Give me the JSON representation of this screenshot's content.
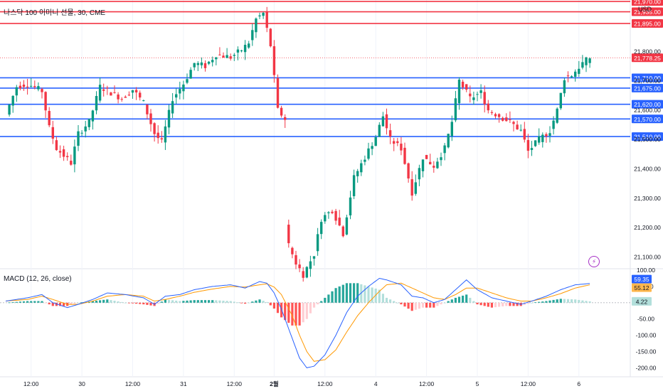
{
  "header": {
    "title": "나스닥 100 이미니 선물, 30, CME",
    "currency": "USD",
    "macd_title": "MACD (12, 26, close)",
    "alert_icon": "lightning-icon"
  },
  "chart_data": {
    "type": "candlestick",
    "title": "나스닥 100 이미니 선물, 30, CME",
    "price_axis": {
      "range": [
        21060,
        21975
      ],
      "tick_labels": [
        "21,800.00",
        "21,700.00",
        "21,600.00",
        "21,500.00",
        "21,400.00",
        "21,300.00",
        "21,200.00",
        "21,100.00"
      ],
      "tick_values": [
        21800,
        21700,
        21600,
        21500,
        21400,
        21300,
        21200,
        21100
      ]
    },
    "time_axis": {
      "labels": [
        "12:00",
        "30",
        "12:00",
        "31",
        "12:00",
        "2월",
        "12:00",
        "4",
        "12:00",
        "5",
        "12:00",
        "6"
      ],
      "bold": [
        false,
        false,
        false,
        false,
        false,
        true,
        false,
        false,
        false,
        false,
        false,
        false
      ],
      "label_bar_index": [
        7,
        21,
        35,
        49,
        63,
        74,
        88,
        102,
        116,
        130,
        144,
        158
      ]
    },
    "resistance_levels": [
      {
        "value": 21970,
        "label": "21,970.00"
      },
      {
        "value": 21935,
        "label": "21,935.00"
      },
      {
        "value": 21895,
        "label": "21,895.00"
      }
    ],
    "support_levels": [
      {
        "value": 21710,
        "label": "21,710.00"
      },
      {
        "value": 21675,
        "label": "21,675.00"
      },
      {
        "value": 21620,
        "label": "21,620.00"
      },
      {
        "value": 21570,
        "label": "21,570.00"
      },
      {
        "value": 21510,
        "label": "21,510.00"
      }
    ],
    "last_price": {
      "value": 21778.25,
      "label": "21,778.25"
    },
    "price_path": [
      [
        0,
        21585
      ],
      [
        3,
        21680
      ],
      [
        6,
        21690
      ],
      [
        10,
        21665
      ],
      [
        12,
        21540
      ],
      [
        14,
        21470
      ],
      [
        18,
        21420
      ],
      [
        20,
        21520
      ],
      [
        23,
        21560
      ],
      [
        26,
        21680
      ],
      [
        29,
        21660
      ],
      [
        32,
        21640
      ],
      [
        35,
        21670
      ],
      [
        38,
        21625
      ],
      [
        41,
        21520
      ],
      [
        43,
        21490
      ],
      [
        46,
        21640
      ],
      [
        49,
        21690
      ],
      [
        52,
        21760
      ],
      [
        55,
        21750
      ],
      [
        58,
        21790
      ],
      [
        62,
        21780
      ],
      [
        65,
        21805
      ],
      [
        67,
        21830
      ],
      [
        69,
        21910
      ],
      [
        71,
        21930
      ],
      [
        73,
        21820
      ],
      [
        75,
        21600
      ],
      [
        77,
        21570
      ],
      [
        78,
        21140
      ],
      [
        80,
        21080
      ],
      [
        82,
        21040
      ],
      [
        85,
        21110
      ],
      [
        87,
        21230
      ],
      [
        90,
        21260
      ],
      [
        93,
        21180
      ],
      [
        96,
        21370
      ],
      [
        99,
        21440
      ],
      [
        102,
        21510
      ],
      [
        104,
        21580
      ],
      [
        106,
        21500
      ],
      [
        109,
        21470
      ],
      [
        112,
        21320
      ],
      [
        115,
        21440
      ],
      [
        118,
        21410
      ],
      [
        121,
        21470
      ],
      [
        123,
        21560
      ],
      [
        125,
        21700
      ],
      [
        128,
        21640
      ],
      [
        131,
        21660
      ],
      [
        133,
        21600
      ],
      [
        136,
        21580
      ],
      [
        139,
        21560
      ],
      [
        142,
        21530
      ],
      [
        144,
        21460
      ],
      [
        147,
        21500
      ],
      [
        150,
        21530
      ],
      [
        152,
        21600
      ],
      [
        154,
        21710
      ],
      [
        156,
        21720
      ],
      [
        159,
        21760
      ],
      [
        161,
        21778
      ]
    ],
    "macd": {
      "axis_range": [
        -210,
        100
      ],
      "tick_labels": [
        "100.00",
        "50.00",
        "-50.00",
        "-100.00",
        "-150.00",
        "-200.00"
      ],
      "tick_values": [
        100,
        50,
        -50,
        -100,
        -150,
        -200
      ],
      "zero_label": "0.00",
      "macd_value": {
        "value": 59.35,
        "label": "59.35"
      },
      "signal_value": {
        "value": 55.12,
        "label": "55.12"
      },
      "histogram_value": {
        "value": 4.22,
        "label": "4.22"
      },
      "macd_line": [
        [
          0,
          5
        ],
        [
          6,
          15
        ],
        [
          10,
          25
        ],
        [
          13,
          0
        ],
        [
          17,
          -15
        ],
        [
          20,
          -5
        ],
        [
          24,
          10
        ],
        [
          28,
          30
        ],
        [
          33,
          25
        ],
        [
          38,
          15
        ],
        [
          41,
          -5
        ],
        [
          44,
          20
        ],
        [
          48,
          25
        ],
        [
          52,
          40
        ],
        [
          57,
          50
        ],
        [
          62,
          55
        ],
        [
          66,
          45
        ],
        [
          70,
          65
        ],
        [
          72,
          60
        ],
        [
          74,
          30
        ],
        [
          76,
          -20
        ],
        [
          79,
          -110
        ],
        [
          81,
          -170
        ],
        [
          83,
          -200
        ],
        [
          85,
          -195
        ],
        [
          88,
          -160
        ],
        [
          91,
          -100
        ],
        [
          94,
          -30
        ],
        [
          97,
          20
        ],
        [
          100,
          50
        ],
        [
          103,
          75
        ],
        [
          105,
          70
        ],
        [
          109,
          55
        ],
        [
          112,
          20
        ],
        [
          115,
          15
        ],
        [
          118,
          0
        ],
        [
          121,
          10
        ],
        [
          124,
          40
        ],
        [
          127,
          70
        ],
        [
          130,
          40
        ],
        [
          134,
          15
        ],
        [
          138,
          5
        ],
        [
          142,
          -5
        ],
        [
          145,
          5
        ],
        [
          149,
          20
        ],
        [
          153,
          40
        ],
        [
          157,
          55
        ],
        [
          161,
          59
        ]
      ],
      "signal_line": [
        [
          0,
          5
        ],
        [
          6,
          10
        ],
        [
          10,
          20
        ],
        [
          13,
          10
        ],
        [
          17,
          -5
        ],
        [
          20,
          -5
        ],
        [
          24,
          5
        ],
        [
          28,
          20
        ],
        [
          33,
          25
        ],
        [
          38,
          20
        ],
        [
          41,
          5
        ],
        [
          44,
          10
        ],
        [
          48,
          20
        ],
        [
          52,
          32
        ],
        [
          57,
          42
        ],
        [
          62,
          50
        ],
        [
          66,
          48
        ],
        [
          70,
          55
        ],
        [
          72,
          58
        ],
        [
          74,
          48
        ],
        [
          76,
          25
        ],
        [
          79,
          -40
        ],
        [
          81,
          -100
        ],
        [
          83,
          -150
        ],
        [
          85,
          -180
        ],
        [
          88,
          -175
        ],
        [
          91,
          -145
        ],
        [
          94,
          -90
        ],
        [
          97,
          -40
        ],
        [
          100,
          0
        ],
        [
          103,
          35
        ],
        [
          105,
          55
        ],
        [
          109,
          60
        ],
        [
          112,
          45
        ],
        [
          115,
          30
        ],
        [
          118,
          15
        ],
        [
          121,
          10
        ],
        [
          124,
          25
        ],
        [
          127,
          45
        ],
        [
          130,
          45
        ],
        [
          134,
          30
        ],
        [
          138,
          15
        ],
        [
          142,
          5
        ],
        [
          145,
          5
        ],
        [
          149,
          15
        ],
        [
          153,
          28
        ],
        [
          157,
          45
        ],
        [
          161,
          55
        ]
      ]
    },
    "colors": {
      "up": "#089981",
      "down": "#f23645",
      "support_line": "#2962ff",
      "resistance_line": "#f23645",
      "macd_line": "#2962ff",
      "signal_line": "#ff9800",
      "hist_up_strong": "#26a69a",
      "hist_up_weak": "#b2dfdb",
      "hist_down_strong": "#ff5252",
      "hist_down_weak": "#ffcdd2",
      "macd_badge": "#2962ff",
      "signal_badge": "#ffb74d",
      "hist_badge": "#b2dfdb",
      "last_price_badge": "#f23645"
    }
  }
}
